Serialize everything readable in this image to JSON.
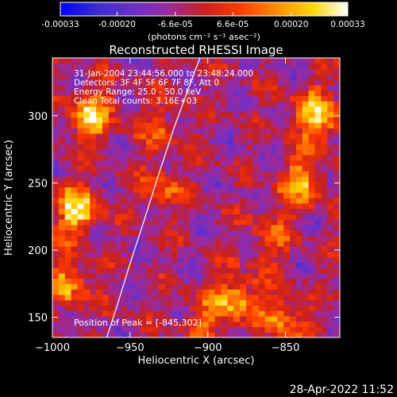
{
  "colorbar": {
    "ticks": [
      {
        "value": -0.00033,
        "label": "-0.00033"
      },
      {
        "value": -0.0002,
        "label": "-0.00020"
      },
      {
        "value": -6.6e-05,
        "label": "-6.6e-05"
      },
      {
        "value": 6.6e-05,
        "label": "6.6e-05"
      },
      {
        "value": 0.0002,
        "label": "0.00020"
      },
      {
        "value": 0.00033,
        "label": "0.00033"
      }
    ],
    "range": [
      -0.00033,
      0.00033
    ],
    "units": "(photons cm⁻² s⁻¹ asec⁻²)",
    "colors": [
      "#0000ff",
      "#3a2bd0",
      "#6a30c8",
      "#9a2aa0",
      "#c8201e",
      "#ff3a00",
      "#ff8c00",
      "#ffd400",
      "#ffffff"
    ]
  },
  "chart_data": {
    "type": "heatmap",
    "title": "Reconstructed RHESSI Image",
    "xlabel": "Heliocentric X (arcsec)",
    "ylabel": "Heliocentric Y (arcsec)",
    "xlim": [
      -1000,
      -815
    ],
    "ylim": [
      135,
      343
    ],
    "xticks": [
      {
        "value": -1000,
        "label": "−1000"
      },
      {
        "value": -950,
        "label": "−950"
      },
      {
        "value": -900,
        "label": "−900"
      },
      {
        "value": -850,
        "label": "−850"
      }
    ],
    "yticks": [
      {
        "value": 150,
        "label": "150"
      },
      {
        "value": 200,
        "label": "200"
      },
      {
        "value": 250,
        "label": "250"
      },
      {
        "value": 300,
        "label": "300"
      }
    ],
    "annotations": [
      "31-Jan-2004 23:44:56.000 to 23:48:24.000",
      "Detectors: 3F 4F 5F 6F 7F 8F, Att 0",
      "Energy Range: 25.0 - 50.0 keV",
      "Clean     Total counts: 3.16E+03"
    ],
    "peak_label": "Position of Peak = [-845,302]",
    "limb_curve": [
      [
        -965,
        135
      ],
      [
        -958,
        160
      ],
      [
        -950,
        190
      ],
      [
        -941,
        222
      ],
      [
        -932,
        255
      ],
      [
        -922,
        290
      ],
      [
        -911,
        325
      ],
      [
        -905,
        343
      ]
    ],
    "bright_regions": [
      {
        "x": -985,
        "y": 230,
        "value": 0.00033
      },
      {
        "x": -975,
        "y": 300,
        "value": 0.00028
      },
      {
        "x": -990,
        "y": 175,
        "value": 0.00022
      },
      {
        "x": -830,
        "y": 300,
        "value": 0.00033
      },
      {
        "x": -840,
        "y": 250,
        "value": 0.00025
      },
      {
        "x": -880,
        "y": 165,
        "value": 0.00024
      },
      {
        "x": -930,
        "y": 245,
        "value": 0.00015
      },
      {
        "x": -930,
        "y": 290,
        "value": 0.00012
      },
      {
        "x": -860,
        "y": 210,
        "value": 0.00014
      },
      {
        "x": -900,
        "y": 150,
        "value": 0.00016
      },
      {
        "x": -850,
        "y": 150,
        "value": 0.0002
      }
    ],
    "grid": false
  },
  "timestamp": "28-Apr-2022 11:52"
}
